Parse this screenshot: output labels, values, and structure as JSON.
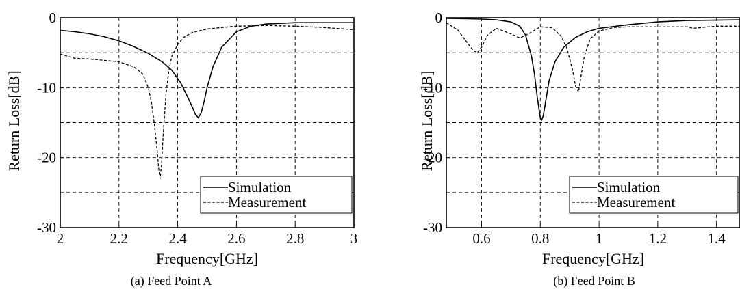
{
  "chart_data": [
    {
      "type": "line",
      "caption": "(a) Feed Point A",
      "xlabel": "Frequency[GHz]",
      "ylabel": "Return Loss[dB]",
      "xlim": [
        2,
        3
      ],
      "ylim": [
        -30,
        0
      ],
      "xticks": [
        2,
        2.2,
        2.4,
        2.6,
        2.8,
        3
      ],
      "xtick_labels": [
        "2",
        "2.2",
        "2.4",
        "2.6",
        "2.8",
        "3"
      ],
      "yticks": [
        0,
        -10,
        -20,
        -30
      ],
      "ytick_labels": [
        "0",
        "-10",
        "-20",
        "-30"
      ],
      "grid": true,
      "legend_position": "bottom-right",
      "series": [
        {
          "name": "Simulation",
          "style": "solid",
          "x": [
            2.0,
            2.05,
            2.1,
            2.15,
            2.2,
            2.25,
            2.3,
            2.35,
            2.38,
            2.41,
            2.43,
            2.45,
            2.46,
            2.47,
            2.48,
            2.49,
            2.5,
            2.52,
            2.55,
            2.6,
            2.65,
            2.7,
            2.8,
            3.0
          ],
          "y": [
            -1.8,
            -2.0,
            -2.3,
            -2.7,
            -3.3,
            -4.1,
            -5.1,
            -6.4,
            -7.5,
            -9.3,
            -11.0,
            -12.8,
            -13.8,
            -14.3,
            -13.6,
            -12.0,
            -10.0,
            -7.0,
            -4.2,
            -2.0,
            -1.2,
            -0.9,
            -0.7,
            -0.7
          ]
        },
        {
          "name": "Measurement",
          "style": "dashed",
          "x": [
            2.0,
            2.05,
            2.1,
            2.15,
            2.2,
            2.25,
            2.28,
            2.3,
            2.31,
            2.32,
            2.33,
            2.335,
            2.34,
            2.345,
            2.35,
            2.36,
            2.37,
            2.38,
            2.4,
            2.42,
            2.45,
            2.5,
            2.55,
            2.6,
            2.7,
            2.8,
            2.9,
            3.0
          ],
          "y": [
            -5.2,
            -5.8,
            -5.9,
            -6.1,
            -6.3,
            -7.0,
            -8.0,
            -10.0,
            -12.0,
            -15.0,
            -19.0,
            -21.5,
            -23.0,
            -21.0,
            -17.0,
            -11.0,
            -7.5,
            -5.5,
            -3.8,
            -2.8,
            -2.1,
            -1.6,
            -1.4,
            -1.2,
            -1.1,
            -1.2,
            -1.4,
            -1.7
          ]
        }
      ]
    },
    {
      "type": "line",
      "caption": "(b) Feed Point B",
      "xlabel": "Frequency[GHz]",
      "ylabel": "Return Loss[dB]",
      "xlim": [
        0.48,
        1.48
      ],
      "ylim": [
        -30,
        0
      ],
      "xticks": [
        0.6,
        0.8,
        1.0,
        1.2,
        1.4
      ],
      "xtick_labels": [
        "0.6",
        "0.8",
        "1",
        "1.2",
        "1.4"
      ],
      "yticks": [
        0,
        -10,
        -20,
        -30
      ],
      "ytick_labels": [
        "0",
        "-10",
        "-20",
        "-30"
      ],
      "grid": true,
      "legend_position": "bottom-right",
      "series": [
        {
          "name": "Simulation",
          "style": "solid",
          "x": [
            0.48,
            0.55,
            0.6,
            0.65,
            0.7,
            0.73,
            0.75,
            0.77,
            0.78,
            0.79,
            0.8,
            0.805,
            0.81,
            0.82,
            0.83,
            0.85,
            0.88,
            0.92,
            0.96,
            1.0,
            1.1,
            1.2,
            1.3,
            1.48
          ],
          "y": [
            -0.1,
            -0.15,
            -0.2,
            -0.3,
            -0.6,
            -1.2,
            -2.5,
            -5.5,
            -8.0,
            -11.5,
            -14.3,
            -14.6,
            -14.0,
            -11.5,
            -9.0,
            -6.3,
            -4.2,
            -2.8,
            -2.0,
            -1.5,
            -1.0,
            -0.6,
            -0.4,
            -0.3
          ]
        },
        {
          "name": "Measurement",
          "style": "dashed",
          "x": [
            0.48,
            0.52,
            0.55,
            0.57,
            0.585,
            0.6,
            0.62,
            0.65,
            0.7,
            0.73,
            0.76,
            0.8,
            0.84,
            0.87,
            0.89,
            0.91,
            0.92,
            0.93,
            0.94,
            0.95,
            0.97,
            1.0,
            1.05,
            1.1,
            1.2,
            1.3,
            1.32,
            1.4,
            1.48
          ],
          "y": [
            -0.7,
            -1.8,
            -3.5,
            -4.6,
            -5.0,
            -4.2,
            -2.5,
            -1.5,
            -2.3,
            -2.9,
            -2.3,
            -1.3,
            -1.4,
            -2.6,
            -4.3,
            -7.5,
            -9.8,
            -10.6,
            -8.0,
            -5.5,
            -3.0,
            -1.9,
            -1.4,
            -1.3,
            -1.3,
            -1.3,
            -1.5,
            -1.2,
            -1.2
          ]
        }
      ]
    }
  ]
}
